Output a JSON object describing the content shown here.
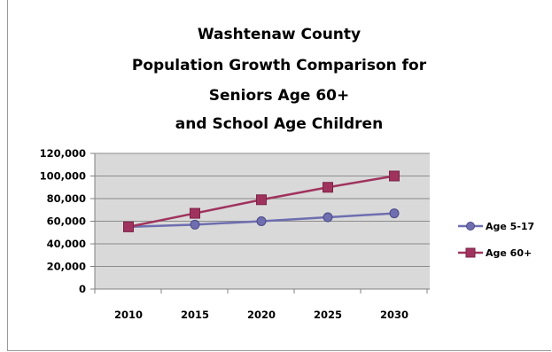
{
  "colors": {
    "plot_background": "#d9d9d9",
    "gridline": "#8c8c8c",
    "age_5_17": "#6e6eb0",
    "age_60_plus": "#a0335e"
  },
  "chart_data": {
    "type": "line",
    "title_lines": [
      "Washtenaw County",
      "Population Growth Comparison for",
      "Seniors Age 60+",
      "and School Age Children"
    ],
    "xlabel": "",
    "ylabel": "",
    "categories": [
      "2010",
      "2015",
      "2020",
      "2025",
      "2030"
    ],
    "ylim": [
      0,
      120000
    ],
    "y_ticks": [
      {
        "value": 0,
        "label": "0"
      },
      {
        "value": 20000,
        "label": "20,000"
      },
      {
        "value": 40000,
        "label": "40,000"
      },
      {
        "value": 60000,
        "label": "60,000"
      },
      {
        "value": 80000,
        "label": "80,000"
      },
      {
        "value": 100000,
        "label": "100,000"
      },
      {
        "value": 120000,
        "label": "120,000"
      }
    ],
    "grid": true,
    "legend_position": "right",
    "series": [
      {
        "name": "Age 5-17",
        "marker": "circle",
        "values": [
          55000,
          57000,
          60000,
          63500,
          67000
        ]
      },
      {
        "name": "Age 60+",
        "marker": "square",
        "values": [
          55000,
          67000,
          79000,
          90000,
          100000
        ]
      }
    ]
  }
}
